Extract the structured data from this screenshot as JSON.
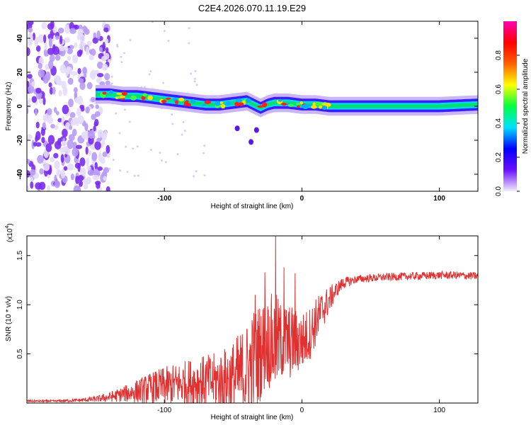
{
  "title": "C2E4.2026.070.11.19.E29",
  "chart_data": [
    {
      "type": "heatmap",
      "xlabel": "Height of straight line (km)",
      "ylabel": "Frequency (Hz)",
      "xlim": [
        -200,
        128
      ],
      "ylim": [
        -50,
        50
      ],
      "x_ticks": [
        -100,
        0,
        100
      ],
      "y_ticks": [
        -40,
        -20,
        0,
        20,
        40
      ],
      "colorbar": {
        "label": "Normalized spectral amplitude",
        "range": [
          0,
          1
        ],
        "ticks": [
          "0.0",
          "0.2",
          "0.4",
          "0.6",
          "0.8"
        ],
        "tick_values": [
          0.0,
          0.2,
          0.4,
          0.6,
          0.8
        ],
        "stops": [
          "#f2ecff",
          "#6a10ff",
          "#0000ff",
          "#00e0ff",
          "#00ff40",
          "#ffff00",
          "#ff6000",
          "#ff0000",
          "#ff00b4"
        ]
      },
      "ridge": {
        "x": [
          -150,
          -140,
          -130,
          -120,
          -110,
          -100,
          -90,
          -80,
          -70,
          -60,
          -50,
          -40,
          -30,
          -25,
          -20,
          -15,
          -10,
          0,
          10,
          20,
          40,
          60,
          80,
          100,
          128
        ],
        "frequency": [
          7,
          7,
          6,
          6,
          5,
          4,
          3,
          2,
          1,
          1,
          2,
          3,
          -1,
          1,
          2,
          2,
          2,
          1,
          1,
          0,
          0,
          0,
          0,
          0,
          1
        ]
      },
      "noise_region_x": [
        -200,
        -140
      ],
      "features": [
        {
          "x": -47,
          "freq": -13
        },
        {
          "x": -37,
          "freq": -21
        },
        {
          "x": -33,
          "freq": -14
        }
      ]
    },
    {
      "type": "line",
      "xlabel": "Height of straight line (km)",
      "ylabel": "SNR (10 * v/v)",
      "y_scale_label": "(x10",
      "y_scale_exp": "4",
      "xlim": [
        -200,
        128
      ],
      "ylim": [
        0,
        1.7
      ],
      "x_ticks": [
        -100,
        0,
        100
      ],
      "y_ticks": [
        0.5,
        1.0,
        1.5
      ],
      "y_tick_labels": [
        "0.5",
        "1.0",
        "1.5"
      ],
      "series": [
        {
          "name": "SNR",
          "color": "#e03030",
          "x": [
            -200,
            -180,
            -160,
            -150,
            -140,
            -130,
            -120,
            -110,
            -100,
            -90,
            -80,
            -70,
            -60,
            -50,
            -45,
            -40,
            -35,
            -30,
            -25,
            -20,
            -15,
            -10,
            -5,
            0,
            5,
            10,
            15,
            20,
            25,
            30,
            40,
            50,
            60,
            80,
            100,
            110,
            128
          ],
          "base": [
            0.02,
            0.02,
            0.03,
            0.04,
            0.06,
            0.09,
            0.12,
            0.15,
            0.17,
            0.19,
            0.21,
            0.22,
            0.22,
            0.24,
            0.28,
            0.33,
            0.42,
            0.53,
            0.62,
            0.6,
            0.62,
            0.62,
            0.62,
            0.62,
            0.69,
            0.82,
            0.95,
            1.05,
            1.15,
            1.22,
            1.26,
            1.27,
            1.28,
            1.29,
            1.3,
            1.3,
            1.29
          ],
          "amp": [
            0.01,
            0.01,
            0.02,
            0.03,
            0.05,
            0.08,
            0.12,
            0.16,
            0.2,
            0.22,
            0.25,
            0.27,
            0.3,
            0.4,
            0.45,
            0.5,
            0.55,
            0.5,
            0.45,
            0.55,
            0.4,
            0.4,
            0.35,
            0.3,
            0.28,
            0.25,
            0.2,
            0.14,
            0.08,
            0.06,
            0.04,
            0.04,
            0.04,
            0.04,
            0.04,
            0.04,
            0.04
          ],
          "spikes": [
            {
              "x": -34,
              "value": 1.1
            },
            {
              "x": -27,
              "value": 1.33
            },
            {
              "x": -19,
              "value": 1.72
            },
            {
              "x": -13,
              "value": 1.38
            },
            {
              "x": -5,
              "value": 1.32
            }
          ]
        }
      ]
    }
  ]
}
